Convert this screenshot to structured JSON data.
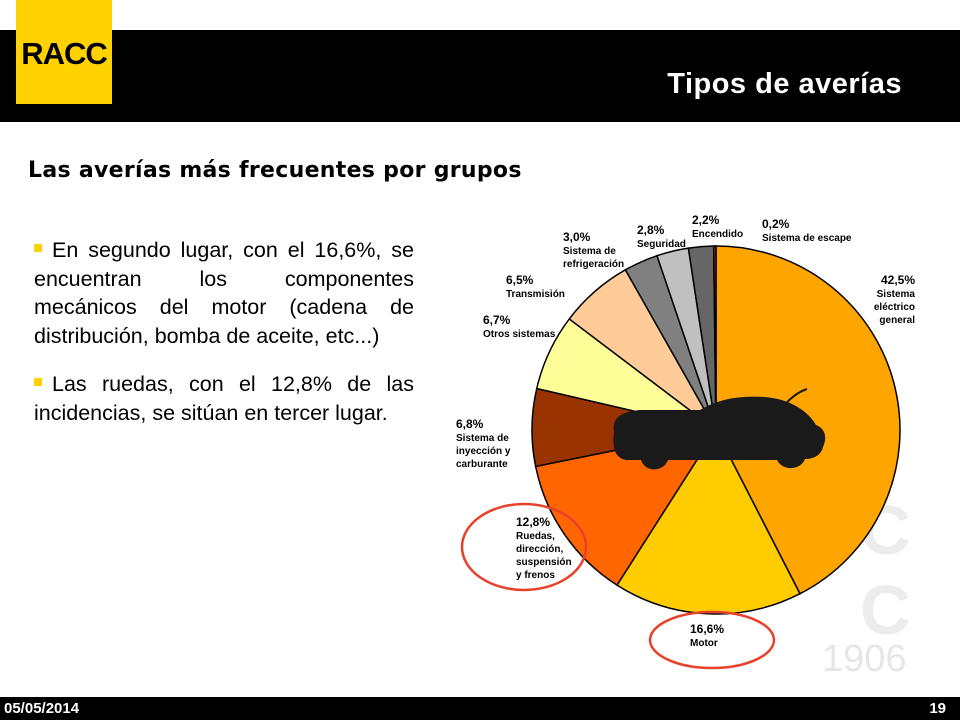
{
  "header": {
    "logo_text": "RACC",
    "title": "Tipos de averías",
    "subtitle": "Las averías más frecuentes por grupos"
  },
  "bullets": [
    "En segundo lugar, con el 16,6%, se encuentran los componentes mecánicos del motor (cadena de distribución, bomba de aceite, etc...)",
    "Las ruedas, con el 12,8% de las incidencias, se sitúan en tercer lugar."
  ],
  "footer": {
    "date": "05/05/2014",
    "page": "19"
  },
  "watermark": {
    "year": "1906"
  },
  "colors": {
    "brand_yellow": "#ffd200",
    "bar_black": "#000000",
    "highlight_circle": "#e8412b"
  },
  "chart_data": {
    "type": "pie",
    "title": "",
    "start": "12 o'clock, clockwise",
    "slices": [
      {
        "pct": "42,5%",
        "value": 42.5,
        "label_lines": [
          "Sistema",
          "eléctrico",
          "general"
        ],
        "color": "#ffa500"
      },
      {
        "pct": "16,6%",
        "value": 16.6,
        "label_lines": [
          "Motor"
        ],
        "color": "#ffcc00",
        "highlighted": true
      },
      {
        "pct": "12,8%",
        "value": 12.8,
        "label_lines": [
          "Ruedas,",
          "dirección,",
          "suspensión",
          "y frenos"
        ],
        "color": "#ff6600",
        "highlighted": true
      },
      {
        "pct": "6,8%",
        "value": 6.8,
        "label_lines": [
          "Sistema de",
          "inyección y",
          "carburante"
        ],
        "color": "#993300"
      },
      {
        "pct": "6,7%",
        "value": 6.7,
        "label_lines": [
          "Otros sistemas"
        ],
        "color": "#ffff99"
      },
      {
        "pct": "6,5%",
        "value": 6.5,
        "label_lines": [
          "Transmisión"
        ],
        "color": "#ffcc99"
      },
      {
        "pct": "3,0%",
        "value": 3.0,
        "label_lines": [
          "Sistema de",
          "refrigeración"
        ],
        "color": "#808080"
      },
      {
        "pct": "2,8%",
        "value": 2.8,
        "label_lines": [
          "Seguridad"
        ],
        "color": "#c0c0c0"
      },
      {
        "pct": "2,2%",
        "value": 2.2,
        "label_lines": [
          "Encendido"
        ],
        "color": "#666666"
      },
      {
        "pct": "0,2%",
        "value": 0.2,
        "label_lines": [
          "Sistema de escape"
        ],
        "color": "#cc3300"
      }
    ]
  }
}
